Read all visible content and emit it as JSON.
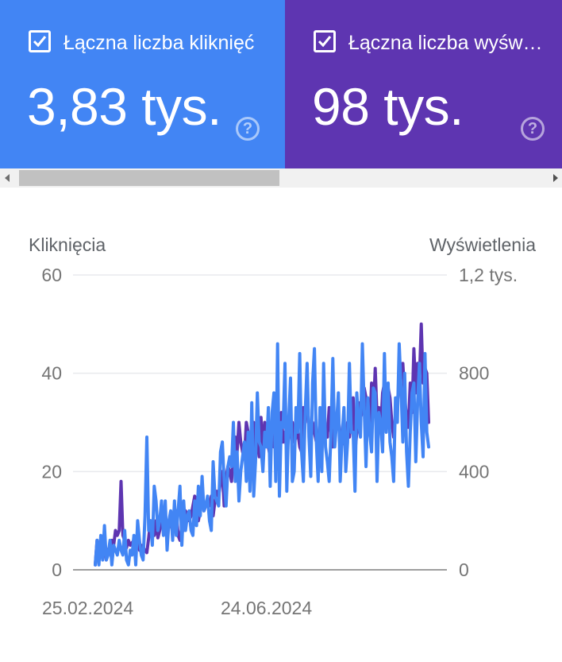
{
  "cards": [
    {
      "label": "Łączna liczba kliknięć",
      "value": "3,83 tys.",
      "checked": true,
      "color": "#4285f4"
    },
    {
      "label": "Łączna liczba wyświetleń",
      "value": "98 tys.",
      "checked": true,
      "color": "#5e35b1"
    }
  ],
  "help_glyph": "?",
  "chart_data": {
    "type": "line",
    "yleft_label": "Kliknięcia",
    "yright_label": "Wyświetlenia",
    "yleft_ticks": [
      "0",
      "20",
      "40",
      "60"
    ],
    "yright_ticks": [
      "0",
      "400",
      "800",
      "1,2 tys."
    ],
    "x_ticks": [
      "25.02.2024",
      "24.06.2024"
    ],
    "x_range": [
      "2024-02-25",
      "2024-09-15"
    ],
    "yleft_lim": [
      0,
      60
    ],
    "yright_lim": [
      0,
      1200
    ],
    "series": [
      {
        "name": "Wyświetlenia",
        "axis": "right",
        "color": "#5e35b1",
        "values": [
          20,
          120,
          40,
          100,
          60,
          90,
          40,
          80,
          100,
          120,
          100,
          160,
          140,
          160,
          360,
          140,
          120,
          90,
          120,
          100,
          110,
          120,
          90,
          110,
          80,
          100,
          90,
          80,
          70,
          130,
          200,
          150,
          140,
          200,
          130,
          160,
          220,
          240,
          160,
          180,
          200,
          180,
          160,
          220,
          240,
          140,
          120,
          180,
          160,
          240,
          220,
          200,
          220,
          260,
          300,
          280,
          200,
          240,
          320,
          240,
          260,
          280,
          260,
          300,
          220,
          280,
          320,
          300,
          360,
          400,
          260,
          380,
          420,
          400,
          360,
          480,
          540,
          480,
          600,
          520,
          480,
          460,
          600,
          560,
          500,
          580,
          600,
          480,
          520,
          460,
          620,
          480,
          600,
          560,
          500,
          460,
          540,
          500,
          620,
          520,
          600,
          640,
          520,
          560,
          480,
          540,
          600,
          600,
          520,
          540,
          560,
          500,
          480,
          660,
          600,
          740,
          580,
          520,
          600,
          560,
          520,
          500,
          620,
          560,
          560,
          580,
          540,
          660,
          560,
          500,
          600,
          580,
          620,
          540,
          560,
          520,
          500,
          600,
          540,
          620,
          700,
          480,
          560,
          680,
          620,
          640,
          740,
          700,
          620,
          560,
          760,
          640,
          820,
          620,
          660,
          580,
          720,
          760,
          640,
          740,
          700,
          600,
          540,
          620,
          680,
          760,
          800,
          840,
          700,
          620,
          580,
          760,
          640,
          900,
          720,
          840,
          780,
          1000,
          760,
          820,
          800,
          600
        ]
      },
      {
        "name": "Kliknięcia",
        "axis": "left",
        "color": "#4285f4",
        "values": [
          1,
          6,
          1,
          7,
          2,
          9,
          2,
          3,
          6,
          1,
          5,
          4,
          3,
          6,
          4,
          3,
          8,
          2,
          1,
          4,
          3,
          7,
          1,
          10,
          6,
          3,
          2,
          11,
          27,
          8,
          10,
          5,
          17,
          14,
          8,
          10,
          14,
          7,
          14,
          4,
          10,
          12,
          6,
          14,
          7,
          12,
          17,
          5,
          14,
          8,
          11,
          12,
          8,
          7,
          14,
          9,
          17,
          11,
          19,
          12,
          13,
          15,
          10,
          8,
          22,
          15,
          14,
          13,
          24,
          26,
          18,
          13,
          21,
          23,
          21,
          30,
          18,
          24,
          14,
          20,
          23,
          26,
          18,
          28,
          16,
          34,
          15,
          22,
          36,
          26,
          25,
          20,
          28,
          25,
          33,
          17,
          32,
          36,
          18,
          46,
          15,
          30,
          29,
          42,
          16,
          30,
          39,
          18,
          20,
          33,
          28,
          44,
          24,
          18,
          32,
          42,
          27,
          19,
          38,
          45,
          26,
          18,
          33,
          20,
          42,
          25,
          22,
          18,
          28,
          43,
          25,
          30,
          36,
          18,
          27,
          33,
          20,
          26,
          42,
          28,
          28,
          16,
          36,
          30,
          27,
          46,
          33,
          21,
          35,
          28,
          24,
          37,
          36,
          18,
          32,
          30,
          24,
          44,
          28,
          38,
          26,
          23,
          18,
          35,
          30,
          46,
          37,
          26,
          40,
          24,
          17,
          28,
          36,
          38,
          22,
          34,
          42,
          30,
          23,
          44,
          28,
          25
        ]
      }
    ]
  }
}
